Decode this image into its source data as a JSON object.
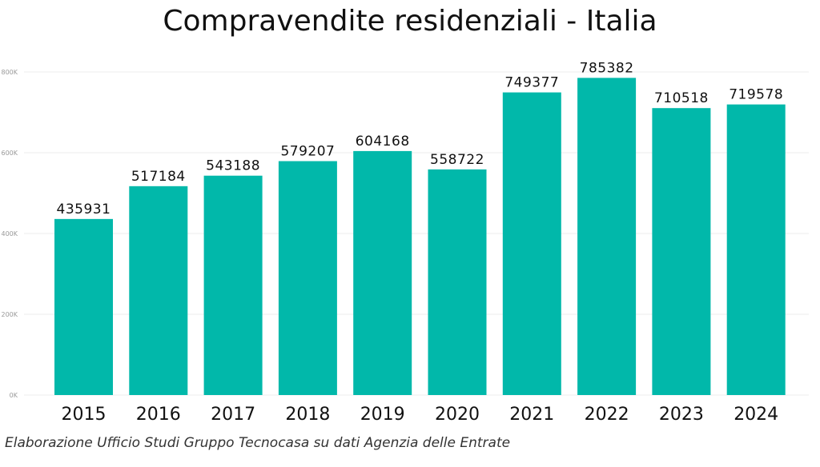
{
  "chart_data": {
    "type": "bar",
    "title": "Compravendite residenziali - Italia",
    "categories": [
      "2015",
      "2016",
      "2017",
      "2018",
      "2019",
      "2020",
      "2021",
      "2022",
      "2023",
      "2024"
    ],
    "values": [
      435931,
      517184,
      543188,
      579207,
      604168,
      558722,
      749377,
      785382,
      710518,
      719578
    ],
    "data_labels": [
      "435931",
      "517184",
      "543188",
      "579207",
      "604168",
      "558722",
      "749377",
      "785382",
      "710518",
      "719578"
    ],
    "xlabel": "",
    "ylabel": "",
    "ylim": [
      0,
      800000
    ],
    "yticks": [
      0,
      200000,
      400000,
      600000,
      800000
    ],
    "ytick_labels": [
      "0K",
      "200K",
      "400K",
      "600K",
      "800K"
    ],
    "grid": true,
    "bar_color": "#01B8AA"
  },
  "source": "Elaborazione Ufficio Studi Gruppo Tecnocasa su dati Agenzia delle Entrate"
}
